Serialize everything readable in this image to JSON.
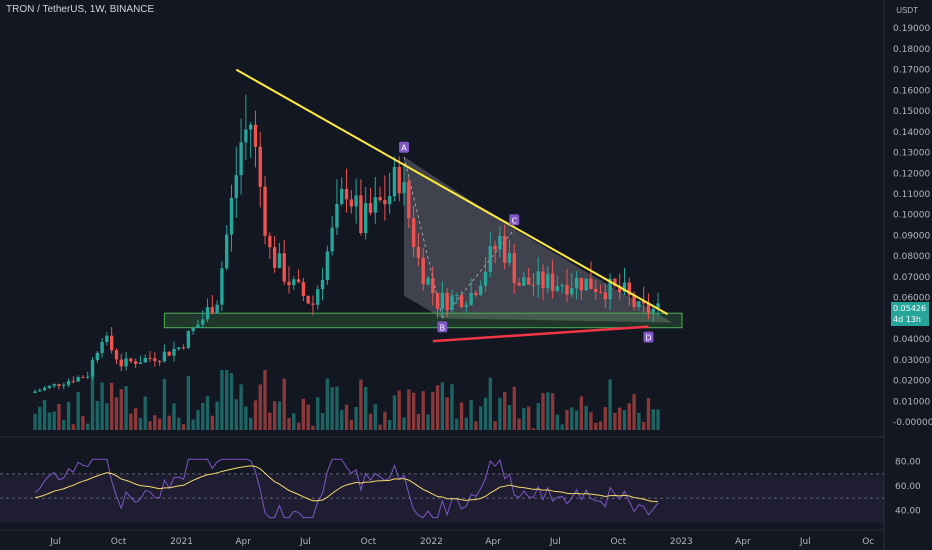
{
  "header": {
    "symbol": "TRON / TetherUS, 1W, BINANCE",
    "currency": "USDT"
  },
  "colors": {
    "background": "#131722",
    "up": "#26a69a",
    "down": "#ef5350",
    "trendline": "#ffeb3b",
    "support_line": "#f23645",
    "zone_border": "#4caf50",
    "pattern_fill": "#787b86",
    "marker": "#7e57c2",
    "rsi_line": "#7e57c2",
    "rsi_ma": "#f5d96b"
  },
  "price_badge": {
    "price": "0.05426",
    "countdown": "4d 13h"
  },
  "pattern_points": [
    {
      "label": "A",
      "date": "2021-11-22",
      "price": 0.128
    },
    {
      "label": "B",
      "date": "2022-01-17",
      "price": 0.05
    },
    {
      "label": "C",
      "date": "2022-05-02",
      "price": 0.093
    },
    {
      "label": "D",
      "date": "2022-11-14",
      "price": 0.046
    }
  ],
  "chart_data": {
    "type": "candlestick",
    "x_axis_labels": [
      "Jul",
      "Oct",
      "2021",
      "Apr",
      "Jul",
      "Oct",
      "2022",
      "Apr",
      "Jul",
      "Oct",
      "2023",
      "Apr",
      "Jul",
      "Oc"
    ],
    "y_axis_labels": [
      "0.19000",
      "0.18000",
      "0.17000",
      "0.16000",
      "0.15000",
      "0.14000",
      "0.13000",
      "0.12000",
      "0.11000",
      "0.10000",
      "0.09000",
      "0.08000",
      "0.07000",
      "0.06000",
      "0.04000",
      "0.03000",
      "0.02000",
      "0.01000",
      "-0.00000"
    ],
    "ylim": [
      -0.002,
      0.193
    ],
    "rsi_axis_labels": [
      "80.00",
      "60.00",
      "40.00"
    ],
    "rsi_ylim": [
      32,
      88
    ],
    "annotations": {
      "descending_trendline": [
        [
          "2021-03-22",
          0.17
        ],
        [
          "2022-12-12",
          0.052
        ]
      ],
      "support_zone": {
        "from": "2020-12-07",
        "to": "2023-01-02",
        "low": 0.0455,
        "high": 0.0525
      },
      "rising_support": [
        [
          "2022-01-03",
          0.039
        ],
        [
          "2022-11-14",
          0.046
        ]
      ]
    },
    "ohlc_keypoints": [
      [
        "2020-06-01",
        0.014
      ],
      [
        "2020-08-24",
        0.023
      ],
      [
        "2020-09-14",
        0.042
      ],
      [
        "2020-10-12",
        0.028
      ],
      [
        "2020-12-07",
        0.032
      ],
      [
        "2021-01-04",
        0.036
      ],
      [
        "2021-02-08",
        0.05
      ],
      [
        "2021-03-01",
        0.06
      ],
      [
        "2021-04-05",
        0.135
      ],
      [
        "2021-04-19",
        0.145
      ],
      [
        "2021-05-17",
        0.082
      ],
      [
        "2021-06-21",
        0.065
      ],
      [
        "2021-07-19",
        0.057
      ],
      [
        "2021-08-16",
        0.09
      ],
      [
        "2021-09-06",
        0.115
      ],
      [
        "2021-09-27",
        0.095
      ],
      [
        "2021-11-08",
        0.11
      ],
      [
        "2021-11-22",
        0.12
      ],
      [
        "2021-12-20",
        0.078
      ],
      [
        "2022-01-17",
        0.058
      ],
      [
        "2022-03-07",
        0.062
      ],
      [
        "2022-04-18",
        0.088
      ],
      [
        "2022-05-16",
        0.067
      ],
      [
        "2022-06-20",
        0.067
      ],
      [
        "2022-08-15",
        0.068
      ],
      [
        "2022-10-17",
        0.062
      ],
      [
        "2022-11-07",
        0.054
      ],
      [
        "2022-11-28",
        0.054
      ]
    ],
    "volume_max": 0.03,
    "rsi_levels": {
      "upper": 70,
      "mid": 50,
      "lower": 30
    }
  }
}
